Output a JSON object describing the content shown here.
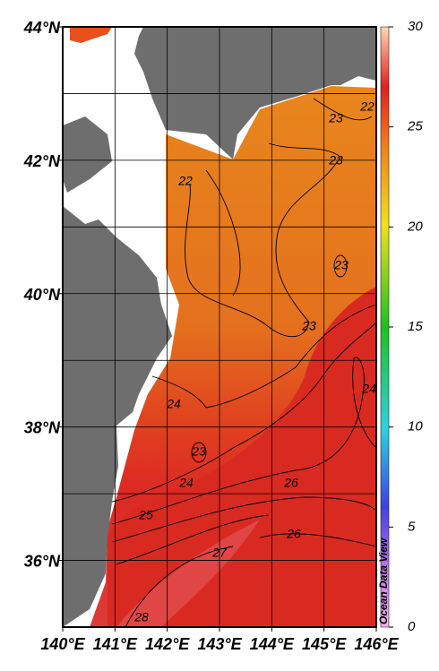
{
  "map": {
    "lon_ticks": [
      {
        "value": 140,
        "label": "140°E"
      },
      {
        "value": 141,
        "label": "141°E"
      },
      {
        "value": 142,
        "label": "142°E"
      },
      {
        "value": 143,
        "label": "143°E"
      },
      {
        "value": 144,
        "label": "144°E"
      },
      {
        "value": 145,
        "label": "145°E"
      },
      {
        "value": 146,
        "label": "146°E"
      }
    ],
    "lat_ticks": [
      {
        "value": 44,
        "label": "44°N"
      },
      {
        "value": 42,
        "label": "42°N"
      },
      {
        "value": 40,
        "label": "40°N"
      },
      {
        "value": 38,
        "label": "38°N"
      },
      {
        "value": 36,
        "label": "36°N"
      }
    ],
    "xlim": [
      140,
      146
    ],
    "ylim": [
      35,
      44
    ],
    "contour_labels": [
      23,
      22,
      23,
      22,
      23,
      23,
      24,
      24,
      23,
      24,
      26,
      25,
      26,
      27,
      28
    ],
    "colorbar": {
      "ticks": [
        0,
        5,
        10,
        15,
        20,
        25,
        30
      ]
    },
    "watermark": "Ocean Data View"
  }
}
